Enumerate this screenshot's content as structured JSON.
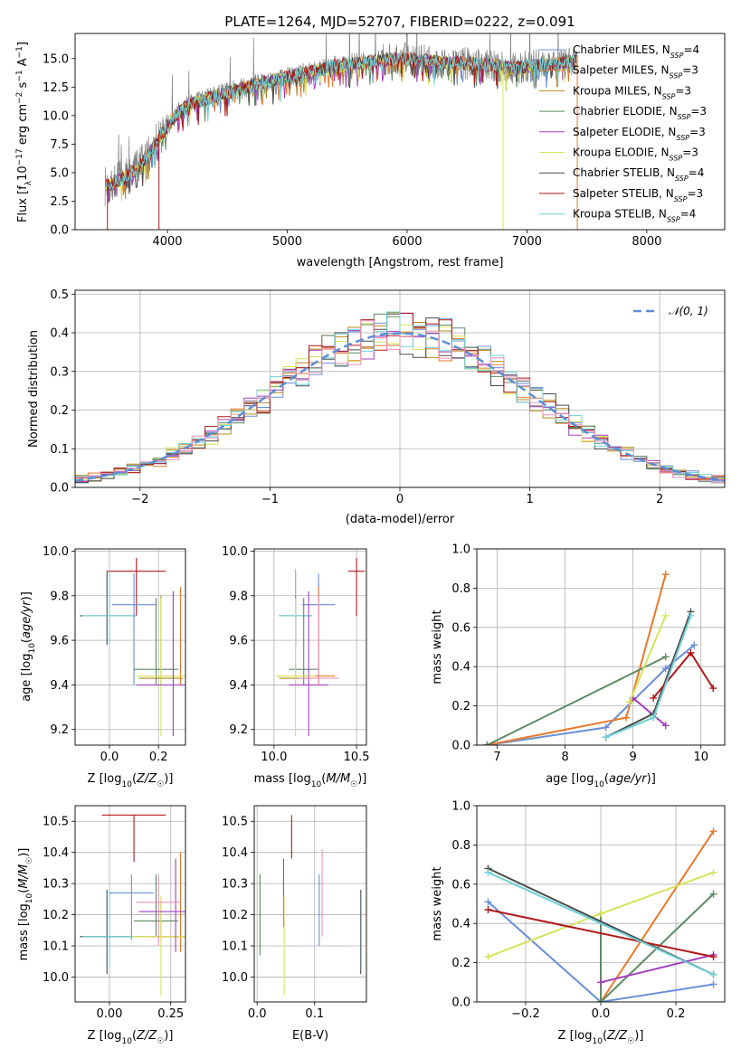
{
  "palette": {
    "Chabrier MILES": "#6a8fd8",
    "Salpeter MILES": "#e8792d",
    "Kroupa MILES": "#b5891e",
    "Chabrier ELODIE": "#5e8a62",
    "Salpeter ELODIE": "#a43fbf",
    "Kroupa ELODIE": "#d6e45c",
    "Chabrier STELIB": "#4a4a4a",
    "Salpeter STELIB": "#b01818",
    "Kroupa STELIB": "#6fd0d6",
    "pink": "#f08fb6",
    "observed": "#808080",
    "normal": "#5b8fd8"
  },
  "chart_data": [
    {
      "type": "line",
      "title": "PLATE=1264, MJD=52707, FIBERID=0222, z=0.091",
      "xlabel": "wavelength [Angstrom, rest frame]",
      "ylabel": "Flux [f_λ10^-17 erg cm^-2 s^-1 A^-1]",
      "xlim": [
        3230,
        8650
      ],
      "ylim": [
        0,
        17.2
      ],
      "xticks": [
        4000,
        5000,
        6000,
        7000,
        8000
      ],
      "yticks": [
        0.0,
        2.5,
        5.0,
        7.5,
        10.0,
        12.5,
        15.0
      ],
      "legend_position": "right",
      "legend": [
        {
          "lib": "Chabrier MILES",
          "text": "Chabrier MILES, N",
          "n": "4"
        },
        {
          "lib": "Salpeter MILES",
          "text": "Salpeter MILES, N",
          "n": "3"
        },
        {
          "lib": "Kroupa MILES",
          "text": "Kroupa MILES, N",
          "n": "3"
        },
        {
          "lib": "Chabrier ELODIE",
          "text": "Chabrier ELODIE, N",
          "n": "3"
        },
        {
          "lib": "Salpeter ELODIE",
          "text": "Salpeter ELODIE, N",
          "n": "3"
        },
        {
          "lib": "Kroupa ELODIE",
          "text": "Kroupa ELODIE, N",
          "n": "3"
        },
        {
          "lib": "Chabrier STELIB",
          "text": "Chabrier STELIB, N",
          "n": "4"
        },
        {
          "lib": "Salpeter STELIB",
          "text": "Salpeter STELIB, N",
          "n": "3"
        },
        {
          "lib": "Kroupa STELIB",
          "text": "Kroupa STELIB, N",
          "n": "4"
        }
      ],
      "continuum": {
        "x": [
          3480,
          3550,
          3650,
          3750,
          3850,
          3950,
          4050,
          4150,
          4300,
          4500,
          4700,
          4900,
          5100,
          5300,
          5500,
          5700,
          5900,
          6100,
          6300,
          6500,
          6700,
          6900,
          7100,
          7300,
          7420
        ],
        "y": [
          3.8,
          4.1,
          4.6,
          5.3,
          6.6,
          8.3,
          9.8,
          10.8,
          11.4,
          12.0,
          12.6,
          13.1,
          13.6,
          14.1,
          14.5,
          14.7,
          15.0,
          14.9,
          14.6,
          14.6,
          14.4,
          14.2,
          14.4,
          14.6,
          14.8
        ]
      },
      "drop_outs": [
        {
          "lib": "Kroupa ELODIE",
          "x": 6800,
          "y": 0
        },
        {
          "lib": "Salpeter MILES",
          "x": 7420,
          "y": 0
        },
        {
          "lib": "Salpeter STELIB",
          "x": 3500,
          "y": 0
        },
        {
          "lib": "Salpeter STELIB",
          "x": 3930,
          "y": 0
        }
      ]
    },
    {
      "type": "histogram",
      "xlabel": "(data-model)/error",
      "ylabel": "Normed distribution",
      "xlim": [
        -2.5,
        2.5
      ],
      "ylim": [
        0,
        0.51
      ],
      "xticks": [
        -2,
        -1,
        0,
        1,
        2
      ],
      "yticks": [
        0.0,
        0.1,
        0.2,
        0.3,
        0.4,
        0.5
      ],
      "bin_width": 0.1,
      "legend": "𝒩(0, 1)",
      "legend_position": "upper right",
      "series_libs": [
        "Chabrier MILES",
        "Salpeter MILES",
        "Kroupa MILES",
        "Chabrier ELODIE",
        "Salpeter ELODIE",
        "Kroupa ELODIE",
        "Chabrier STELIB",
        "Salpeter STELIB",
        "Kroupa STELIB",
        "pink"
      ]
    },
    {
      "type": "scatter",
      "xlabel": "Z [log10(Z/Z☉)]",
      "ylabel": "age [log10(age/yr)]",
      "xlim": [
        -0.14,
        0.31
      ],
      "ylim": [
        9.13,
        10.01
      ],
      "xticks": [
        0.0,
        0.2
      ],
      "yticks": [
        9.2,
        9.4,
        9.6,
        9.8,
        10.0
      ],
      "points": [
        {
          "lib": "Salpeter STELIB",
          "x": 0.11,
          "y": 9.91,
          "xerr": 0.12,
          "ylo": 9.71,
          "yhi": 9.97
        },
        {
          "lib": "Chabrier STELIB",
          "x": -0.01,
          "y": 9.71,
          "xerr": 0.11,
          "ylo": 9.58,
          "yhi": 9.91
        },
        {
          "lib": "Kroupa STELIB",
          "x": 0.0,
          "y": 9.71,
          "xerr": 0.11,
          "ylo": 9.58,
          "yhi": 9.91
        },
        {
          "lib": "Chabrier MILES",
          "x": 0.1,
          "y": 9.76,
          "xerr": 0.09,
          "ylo": 9.4,
          "yhi": 9.9
        },
        {
          "lib": "Chabrier ELODIE",
          "x": 0.19,
          "y": 9.47,
          "xerr": 0.09,
          "ylo": 9.4,
          "yhi": 9.79
        },
        {
          "lib": "Kroupa MILES",
          "x": 0.21,
          "y": 9.43,
          "xerr": 0.09,
          "ylo": 9.4,
          "yhi": 9.8
        },
        {
          "lib": "Salpeter MILES",
          "x": 0.29,
          "y": 9.44,
          "xerr": 0.09,
          "ylo": 9.4,
          "yhi": 9.84
        },
        {
          "lib": "Kroupa ELODIE",
          "x": 0.21,
          "y": 9.44,
          "xerr": 0.1,
          "ylo": 9.17,
          "yhi": 9.79
        },
        {
          "lib": "Salpeter ELODIE",
          "x": 0.26,
          "y": 9.4,
          "xerr": 0.15,
          "ylo": 9.17,
          "yhi": 9.82
        }
      ]
    },
    {
      "type": "scatter",
      "xlabel": "mass [log10(M/M☉)]",
      "ylabel": "",
      "xlim": [
        9.88,
        10.56
      ],
      "ylim": [
        9.13,
        10.01
      ],
      "xticks": [
        10.0,
        10.5
      ],
      "yticks": [
        9.2,
        9.4,
        9.6,
        9.8,
        10.0
      ],
      "points": [
        {
          "lib": "Salpeter STELIB",
          "x": 10.5,
          "y": 9.91,
          "xerr": 0.05,
          "ylo": 9.71,
          "yhi": 9.97
        },
        {
          "lib": "Chabrier STELIB",
          "x": 10.13,
          "y": 9.71,
          "xerr": 0.1,
          "ylo": 9.58,
          "yhi": 9.91
        },
        {
          "lib": "Kroupa STELIB",
          "x": 10.13,
          "y": 9.71,
          "xerr": 0.1,
          "ylo": 9.58,
          "yhi": 9.92
        },
        {
          "lib": "Chabrier MILES",
          "x": 10.27,
          "y": 9.76,
          "xerr": 0.1,
          "ylo": 9.4,
          "yhi": 9.9
        },
        {
          "lib": "Chabrier ELODIE",
          "x": 10.18,
          "y": 9.47,
          "xerr": 0.09,
          "ylo": 9.4,
          "yhi": 9.79
        },
        {
          "lib": "Kroupa MILES",
          "x": 10.13,
          "y": 9.43,
          "xerr": 0.1,
          "ylo": 9.4,
          "yhi": 9.8
        },
        {
          "lib": "Salpeter MILES",
          "x": 10.27,
          "y": 9.44,
          "xerr": 0.1,
          "ylo": 9.4,
          "yhi": 9.84
        },
        {
          "lib": "Kroupa ELODIE",
          "x": 10.13,
          "y": 9.44,
          "xerr": 0.12,
          "ylo": 9.17,
          "yhi": 9.79
        },
        {
          "lib": "Salpeter ELODIE",
          "x": 10.21,
          "y": 9.4,
          "xerr": 0.12,
          "ylo": 9.17,
          "yhi": 9.82
        },
        {
          "lib": "pink",
          "x": 10.27,
          "y": 9.43,
          "xerr": 0.12,
          "ylo": 9.4,
          "yhi": 9.8
        }
      ]
    },
    {
      "type": "line",
      "xlabel": "age  [log10(age/yr)]",
      "ylabel": "mass weight",
      "xlim": [
        6.7,
        10.35
      ],
      "ylim": [
        0,
        1.0
      ],
      "xticks": [
        7,
        8,
        9,
        10
      ],
      "yticks": [
        0.0,
        0.2,
        0.4,
        0.6,
        0.8,
        1.0
      ],
      "series": [
        {
          "lib": "Chabrier MILES",
          "x": [
            6.85,
            8.6,
            9.48,
            9.9
          ],
          "y": [
            0.0,
            0.09,
            0.39,
            0.51
          ]
        },
        {
          "lib": "Salpeter MILES",
          "x": [
            6.85,
            8.9,
            9.48
          ],
          "y": [
            0.0,
            0.14,
            0.87
          ]
        },
        {
          "lib": "Chabrier ELODIE",
          "x": [
            6.85,
            9.48
          ],
          "y": [
            0.0,
            0.45
          ]
        },
        {
          "lib": "Salpeter ELODIE",
          "x": [
            9.0,
            9.48
          ],
          "y": [
            0.24,
            0.1
          ]
        },
        {
          "lib": "Kroupa ELODIE",
          "x": [
            8.95,
            9.48
          ],
          "y": [
            0.22,
            0.66
          ]
        },
        {
          "lib": "Chabrier STELIB",
          "x": [
            8.6,
            9.3,
            9.85
          ],
          "y": [
            0.04,
            0.16,
            0.68
          ]
        },
        {
          "lib": "Salpeter STELIB",
          "x": [
            9.3,
            9.85,
            10.18
          ],
          "y": [
            0.24,
            0.47,
            0.29
          ]
        },
        {
          "lib": "Kroupa STELIB",
          "x": [
            8.6,
            9.3,
            9.85
          ],
          "y": [
            0.04,
            0.14,
            0.66
          ]
        }
      ]
    },
    {
      "type": "scatter",
      "xlabel": "Z [log10(Z/Z☉)]",
      "ylabel": "mass [log10(M/M☉)]",
      "xlim": [
        -0.14,
        0.31
      ],
      "ylim": [
        9.92,
        10.55
      ],
      "xticks": [
        0.0,
        0.25
      ],
      "yticks": [
        10.0,
        10.1,
        10.2,
        10.3,
        10.4,
        10.5
      ],
      "points": [
        {
          "lib": "Salpeter STELIB",
          "x": 0.1,
          "y": 10.52,
          "xerr": 0.13,
          "ylo": 10.37,
          "yhi": 10.52
        },
        {
          "lib": "Chabrier STELIB",
          "x": -0.01,
          "y": 10.13,
          "xerr": 0.11,
          "ylo": 10.01,
          "yhi": 10.28
        },
        {
          "lib": "Kroupa STELIB",
          "x": 0.0,
          "y": 10.13,
          "xerr": 0.11,
          "ylo": 10.03,
          "yhi": 10.28
        },
        {
          "lib": "Chabrier MILES",
          "x": 0.09,
          "y": 10.27,
          "xerr": 0.09,
          "ylo": 10.12,
          "yhi": 10.33
        },
        {
          "lib": "Chabrier ELODIE",
          "x": 0.19,
          "y": 10.18,
          "xerr": 0.09,
          "ylo": 10.13,
          "yhi": 10.33
        },
        {
          "lib": "Kroupa MILES",
          "x": 0.21,
          "y": 10.13,
          "xerr": 0.1,
          "ylo": 10.12,
          "yhi": 10.24
        },
        {
          "lib": "Salpeter MILES",
          "x": 0.29,
          "y": 10.13,
          "xerr": 0.12,
          "ylo": 10.08,
          "yhi": 10.4
        },
        {
          "lib": "Kroupa ELODIE",
          "x": 0.21,
          "y": 10.13,
          "xerr": 0.12,
          "ylo": 9.94,
          "yhi": 10.26
        },
        {
          "lib": "Salpeter ELODIE",
          "x": 0.27,
          "y": 10.21,
          "xerr": 0.15,
          "ylo": 10.08,
          "yhi": 10.38
        },
        {
          "lib": "pink",
          "x": 0.2,
          "y": 10.24,
          "xerr": 0.09,
          "ylo": 10.1,
          "yhi": 10.33
        }
      ]
    },
    {
      "type": "scatter",
      "xlabel": "E(B-V)",
      "ylabel": "",
      "xlim": [
        -0.005,
        0.19
      ],
      "ylim": [
        9.92,
        10.55
      ],
      "xticks": [
        0.0,
        0.1
      ],
      "yticks": [
        10.0,
        10.1,
        10.2,
        10.3,
        10.4,
        10.5
      ],
      "points": [
        {
          "lib": "Salpeter STELIB",
          "x": 0.06,
          "ylo": 10.38,
          "yhi": 10.52
        },
        {
          "lib": "Chabrier ELODIE",
          "x": 0.005,
          "ylo": 10.07,
          "yhi": 10.33
        },
        {
          "lib": "Salpeter ELODIE",
          "x": 0.046,
          "ylo": 10.16,
          "yhi": 10.38
        },
        {
          "lib": "Kroupa ELODIE",
          "x": 0.047,
          "ylo": 9.94,
          "yhi": 10.26
        },
        {
          "lib": "Chabrier MILES",
          "x": 0.108,
          "ylo": 10.1,
          "yhi": 10.33
        },
        {
          "lib": "pink",
          "x": 0.113,
          "ylo": 10.13,
          "yhi": 10.41
        },
        {
          "lib": "Chabrier STELIB",
          "x": 0.18,
          "ylo": 10.01,
          "yhi": 10.28
        },
        {
          "lib": "Kroupa STELIB",
          "x": 0.181,
          "ylo": 10.02,
          "yhi": 10.28
        }
      ]
    },
    {
      "type": "line",
      "xlabel": "Z [log10(Z/Z☉)]",
      "ylabel": "mass weight",
      "xlim": [
        -0.33,
        0.33
      ],
      "ylim": [
        0,
        1.0
      ],
      "xticks": [
        -0.2,
        0.0,
        0.2
      ],
      "yticks": [
        0.0,
        0.2,
        0.4,
        0.6,
        0.8,
        1.0
      ],
      "series": [
        {
          "lib": "Chabrier MILES",
          "x": [
            -0.3,
            0.0,
            0.3
          ],
          "y": [
            0.51,
            0.0,
            0.09
          ]
        },
        {
          "lib": "Salpeter MILES",
          "x": [
            0.0,
            0.3
          ],
          "y": [
            0.0,
            0.87
          ]
        },
        {
          "lib": "Chabrier ELODIE",
          "x": [
            0.0,
            0.3,
            0.0,
            0.0
          ],
          "y": [
            0.0,
            0.55,
            0.0,
            0.45
          ]
        },
        {
          "lib": "Salpeter ELODIE",
          "x": [
            0.0,
            0.3
          ],
          "y": [
            0.1,
            0.24
          ]
        },
        {
          "lib": "Kroupa ELODIE",
          "x": [
            -0.3,
            0.0,
            0.3
          ],
          "y": [
            0.23,
            0.45,
            0.66
          ]
        },
        {
          "lib": "Chabrier STELIB",
          "x": [
            -0.3,
            0.3
          ],
          "y": [
            0.68,
            0.14
          ]
        },
        {
          "lib": "Salpeter STELIB",
          "x": [
            -0.3,
            0.3
          ],
          "y": [
            0.47,
            0.23
          ]
        },
        {
          "lib": "Kroupa STELIB",
          "x": [
            -0.3,
            0.3
          ],
          "y": [
            0.66,
            0.14
          ]
        }
      ]
    }
  ]
}
